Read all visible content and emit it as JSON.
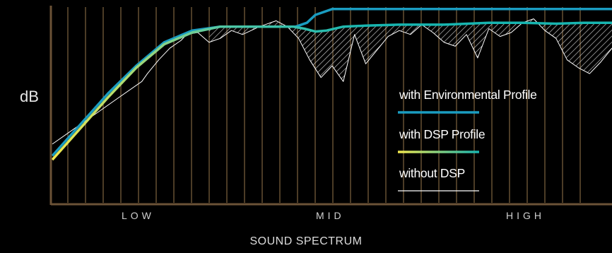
{
  "chart_data": {
    "type": "line",
    "ylabel": "dB",
    "xlabel": "SOUND SPECTRUM",
    "x_ticks": [
      "LOW",
      "MID",
      "HIGH"
    ],
    "legend": [
      {
        "name": "with Environmental Profile",
        "color": "#1a9cc0"
      },
      {
        "name": "with DSP Profile",
        "color_from": "#f2e94e",
        "color_to": "#17b5b0"
      },
      {
        "name": "without DSP",
        "color": "#ffffff"
      }
    ],
    "series": [
      {
        "name": "with Environmental Profile",
        "x": [
          0.0,
          0.1,
          0.15,
          0.2,
          0.25,
          0.3,
          0.4,
          0.435,
          0.455,
          0.47,
          0.5,
          1.0
        ],
        "y": [
          0.24,
          0.56,
          0.7,
          0.82,
          0.88,
          0.9,
          0.9,
          0.9,
          0.92,
          0.96,
          0.99,
          0.99
        ]
      },
      {
        "name": "with DSP Profile",
        "x": [
          0.0,
          0.1,
          0.15,
          0.2,
          0.25,
          0.3,
          0.4,
          0.43,
          0.45,
          0.47,
          0.49,
          0.52,
          0.56,
          0.62,
          0.7,
          0.78,
          0.84,
          0.9,
          0.95,
          1.0
        ],
        "y": [
          0.22,
          0.54,
          0.69,
          0.81,
          0.87,
          0.9,
          0.9,
          0.9,
          0.89,
          0.875,
          0.88,
          0.9,
          0.905,
          0.91,
          0.91,
          0.92,
          0.92,
          0.915,
          0.92,
          0.92
        ]
      },
      {
        "name": "without DSP",
        "x": [
          0.0,
          0.04,
          0.08,
          0.12,
          0.16,
          0.17,
          0.19,
          0.21,
          0.23,
          0.24,
          0.26,
          0.28,
          0.3,
          0.32,
          0.34,
          0.37,
          0.4,
          0.42,
          0.44,
          0.46,
          0.48,
          0.5,
          0.52,
          0.54,
          0.56,
          0.58,
          0.6,
          0.62,
          0.64,
          0.66,
          0.68,
          0.7,
          0.72,
          0.74,
          0.76,
          0.78,
          0.8,
          0.82,
          0.84,
          0.86,
          0.88,
          0.9,
          0.92,
          0.94,
          0.96,
          0.98,
          1.0
        ],
        "y": [
          0.3,
          0.38,
          0.46,
          0.54,
          0.62,
          0.66,
          0.73,
          0.79,
          0.83,
          0.86,
          0.87,
          0.82,
          0.84,
          0.88,
          0.86,
          0.9,
          0.93,
          0.9,
          0.84,
          0.73,
          0.64,
          0.7,
          0.62,
          0.86,
          0.71,
          0.78,
          0.85,
          0.88,
          0.86,
          0.91,
          0.87,
          0.82,
          0.8,
          0.86,
          0.74,
          0.89,
          0.85,
          0.87,
          0.92,
          0.94,
          0.88,
          0.84,
          0.73,
          0.69,
          0.66,
          0.72,
          0.79
        ]
      }
    ]
  }
}
